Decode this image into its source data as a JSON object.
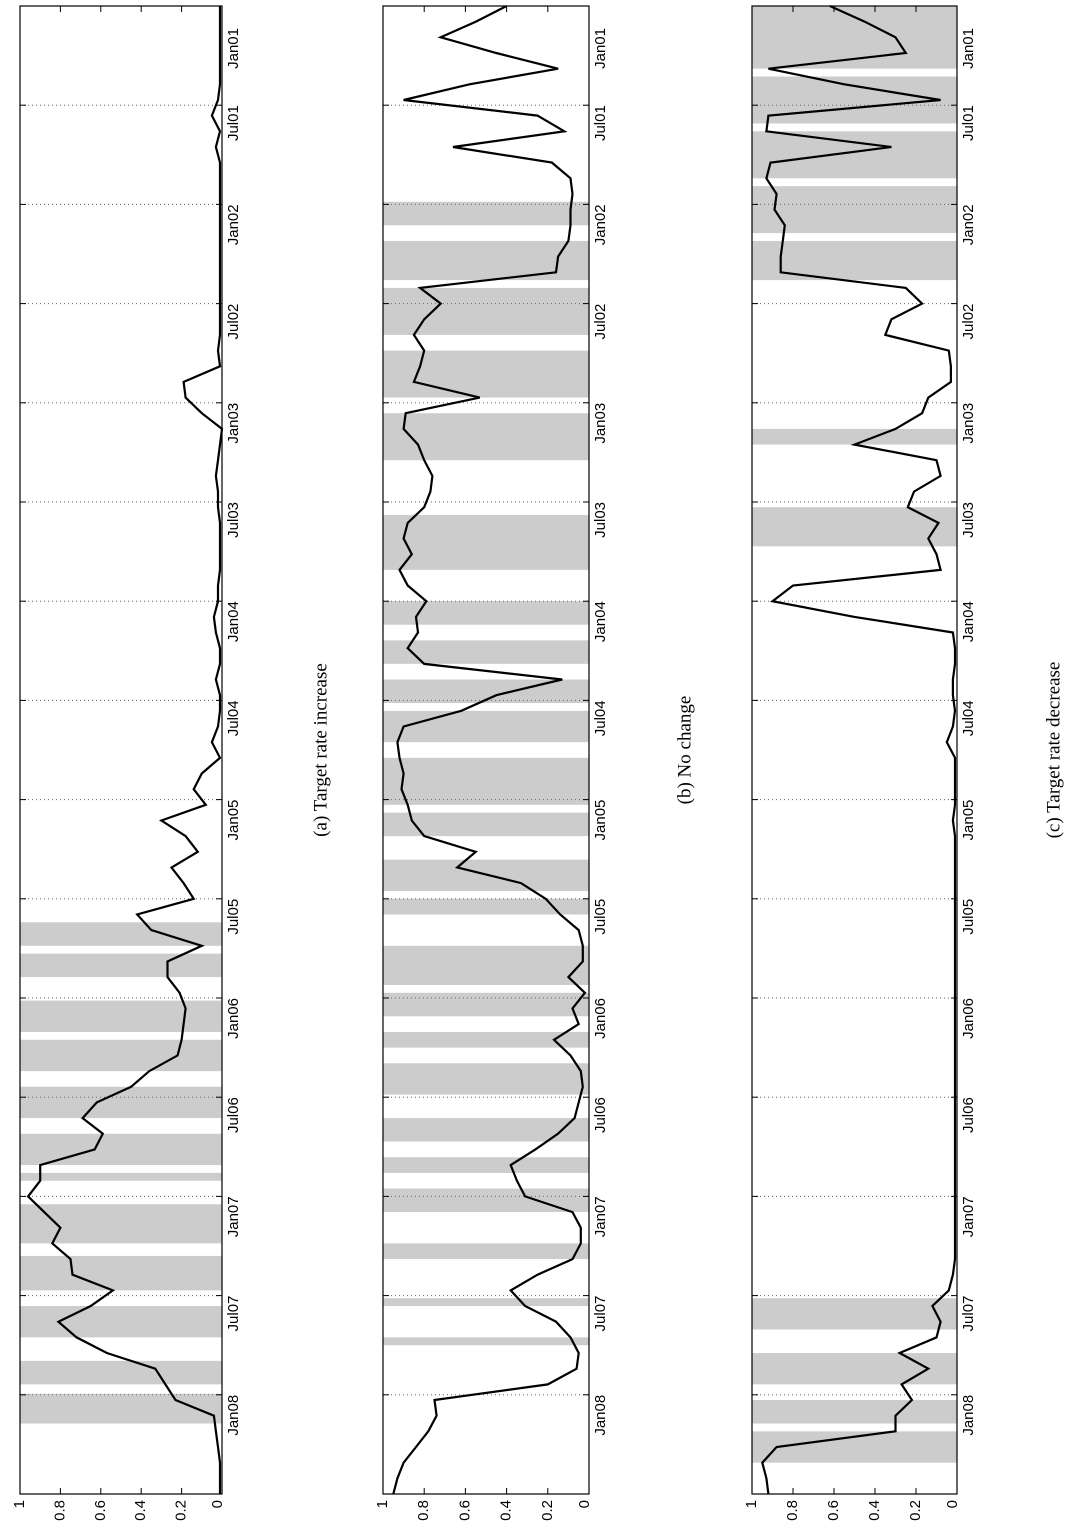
{
  "chart_data": [
    {
      "type": "line",
      "caption": "(a) Target rate increase",
      "ylim": [
        0,
        1
      ],
      "yticks": [
        "0",
        "0.2",
        "0.4",
        "0.6",
        "0.8",
        "1"
      ],
      "xlabels": [
        "Jan01",
        "Jul01",
        "Jan02",
        "Jul02",
        "Jan03",
        "Jul03",
        "Jan04",
        "Jul04",
        "Jan05",
        "Jul05",
        "Jan06",
        "Jul06",
        "Jan07",
        "Jul07",
        "Jan08"
      ],
      "xlim": [
        0,
        95
      ],
      "grid": "vertical-dotted",
      "shaded": [
        [
          58.5,
          60
        ],
        [
          60.5,
          62
        ],
        [
          63.5,
          65.5
        ],
        [
          66,
          68
        ],
        [
          69,
          71
        ],
        [
          72,
          74
        ],
        [
          74.5,
          75
        ],
        [
          76.5,
          79
        ],
        [
          79.8,
          82
        ],
        [
          83,
          85
        ],
        [
          86.5,
          88
        ],
        [
          88.6,
          90.5
        ]
      ],
      "x": [
        0,
        1,
        2,
        3,
        4,
        5,
        6,
        7,
        8,
        9,
        10,
        11,
        12,
        13,
        14,
        15,
        16,
        17,
        18,
        19,
        20,
        21,
        22,
        23,
        24,
        25,
        26,
        27,
        28,
        29,
        30,
        31,
        32,
        33,
        34,
        35,
        36,
        37,
        38,
        39,
        40,
        41,
        42,
        43,
        44,
        45,
        46,
        47,
        48,
        49,
        50,
        51,
        52,
        53,
        54,
        55,
        56,
        57,
        58,
        59,
        60,
        61,
        62,
        63,
        64,
        65,
        66,
        67,
        68,
        69,
        70,
        71,
        72,
        73,
        74,
        75,
        76,
        77,
        78,
        79,
        80,
        81,
        82,
        83,
        84,
        85,
        86,
        87,
        88,
        89,
        90,
        91,
        92,
        93,
        94,
        95
      ],
      "values": [
        0.01,
        0.01,
        0.01,
        0.01,
        0.01,
        0.01,
        0.02,
        0.05,
        0.01,
        0.03,
        0.01,
        0.01,
        0.01,
        0.01,
        0.01,
        0.01,
        0.01,
        0.01,
        0.01,
        0.01,
        0.01,
        0.01,
        0.02,
        0.01,
        0.19,
        0.18,
        0.1,
        0.0,
        0.01,
        0.02,
        0.03,
        0.02,
        0.02,
        0.01,
        0.01,
        0.01,
        0.01,
        0.02,
        0.02,
        0.04,
        0.03,
        0.01,
        0.01,
        0.03,
        0.01,
        0.01,
        0.02,
        0.05,
        0.01,
        0.1,
        0.14,
        0.08,
        0.3,
        0.18,
        0.12,
        0.25,
        0.19,
        0.14,
        0.42,
        0.35,
        0.1,
        0.27,
        0.27,
        0.21,
        0.18,
        0.19,
        0.2,
        0.22,
        0.36,
        0.45,
        0.62,
        0.69,
        0.59,
        0.63,
        0.9,
        0.9,
        0.96,
        0.88,
        0.8,
        0.84,
        0.75,
        0.74,
        0.54,
        0.65,
        0.81,
        0.72,
        0.57,
        0.33,
        0.28,
        0.23,
        0.04,
        0.03,
        0.02,
        0.01,
        0.01,
        0.01
      ]
    },
    {
      "type": "line",
      "caption": "(b) No change",
      "ylim": [
        0,
        1
      ],
      "yticks": [
        "0",
        "0.2",
        "0.4",
        "0.6",
        "0.8",
        "1"
      ],
      "xlabels": [
        "Jan01",
        "Jul01",
        "Jan02",
        "Jul02",
        "Jan03",
        "Jul03",
        "Jan04",
        "Jul04",
        "Jan05",
        "Jul05",
        "Jan06",
        "Jul06",
        "Jan07",
        "Jul07",
        "Jan08"
      ],
      "xlim": [
        0,
        95
      ],
      "grid": "vertical-dotted",
      "shaded": [
        [
          12.5,
          14
        ],
        [
          15,
          17.5
        ],
        [
          18,
          21
        ],
        [
          22,
          25
        ],
        [
          26,
          29
        ],
        [
          32.5,
          36
        ],
        [
          38,
          39.5
        ],
        [
          40.5,
          42
        ],
        [
          43,
          44.5
        ],
        [
          45,
          47
        ],
        [
          48,
          51
        ],
        [
          51.5,
          53
        ],
        [
          54.5,
          56.5
        ],
        [
          57,
          58
        ],
        [
          60,
          62.5
        ],
        [
          63,
          64.5
        ],
        [
          65.5,
          66.5
        ],
        [
          67.5,
          69.5
        ],
        [
          71,
          72.5
        ],
        [
          73.5,
          74.5
        ],
        [
          75.5,
          77
        ],
        [
          79,
          80
        ],
        [
          82.5,
          83
        ],
        [
          85,
          85.5
        ]
      ],
      "x": [
        0,
        1,
        2,
        3,
        4,
        5,
        6,
        7,
        8,
        9,
        10,
        11,
        12,
        13,
        14,
        15,
        16,
        17,
        18,
        19,
        20,
        21,
        22,
        23,
        24,
        25,
        26,
        27,
        28,
        29,
        30,
        31,
        32,
        33,
        34,
        35,
        36,
        37,
        38,
        39,
        40,
        41,
        42,
        43,
        44,
        45,
        46,
        47,
        48,
        49,
        50,
        51,
        52,
        53,
        54,
        55,
        56,
        57,
        58,
        59,
        60,
        61,
        62,
        63,
        64,
        65,
        66,
        67,
        68,
        69,
        70,
        71,
        72,
        73,
        74,
        75,
        76,
        77,
        78,
        79,
        80,
        81,
        82,
        83,
        84,
        85,
        86,
        87,
        88,
        89,
        90,
        91,
        92,
        93,
        94,
        95
      ],
      "values": [
        0.4,
        0.55,
        0.72,
        0.45,
        0.15,
        0.58,
        0.9,
        0.25,
        0.12,
        0.66,
        0.18,
        0.09,
        0.08,
        0.09,
        0.09,
        0.1,
        0.15,
        0.16,
        0.82,
        0.72,
        0.8,
        0.85,
        0.8,
        0.82,
        0.85,
        0.53,
        0.89,
        0.9,
        0.83,
        0.8,
        0.76,
        0.77,
        0.8,
        0.88,
        0.9,
        0.86,
        0.92,
        0.88,
        0.79,
        0.84,
        0.83,
        0.88,
        0.8,
        0.13,
        0.45,
        0.62,
        0.9,
        0.93,
        0.92,
        0.9,
        0.91,
        0.88,
        0.86,
        0.8,
        0.55,
        0.64,
        0.33,
        0.21,
        0.14,
        0.05,
        0.03,
        0.03,
        0.1,
        0.02,
        0.08,
        0.05,
        0.17,
        0.09,
        0.04,
        0.03,
        0.05,
        0.07,
        0.15,
        0.26,
        0.38,
        0.35,
        0.31,
        0.08,
        0.04,
        0.04,
        0.08,
        0.25,
        0.38,
        0.31,
        0.16,
        0.09,
        0.05,
        0.06,
        0.2,
        0.75,
        0.74,
        0.78,
        0.84,
        0.9,
        0.93,
        0.95
      ]
    },
    {
      "type": "line",
      "caption": "(c) Target rate decrease",
      "ylim": [
        0,
        1
      ],
      "yticks": [
        "0",
        "0.2",
        "0.4",
        "0.6",
        "0.8",
        "1"
      ],
      "xlabels": [
        "Jan01",
        "Jul01",
        "Jan02",
        "Jul02",
        "Jan03",
        "Jul03",
        "Jan04",
        "Jul04",
        "Jan05",
        "Jul05",
        "Jan06",
        "Jul06",
        "Jan07",
        "Jul07",
        "Jan08"
      ],
      "xlim": [
        0,
        95
      ],
      "grid": "vertical-dotted",
      "shaded": [
        [
          0,
          4
        ],
        [
          4.5,
          7.5
        ],
        [
          8,
          11
        ],
        [
          11.5,
          14.5
        ],
        [
          15,
          17.5
        ],
        [
          27,
          28
        ],
        [
          32,
          34.5
        ],
        [
          82.5,
          84.5
        ],
        [
          86,
          88
        ],
        [
          89,
          90.5
        ],
        [
          91,
          93
        ]
      ],
      "x": [
        0,
        1,
        2,
        3,
        4,
        5,
        6,
        7,
        8,
        9,
        10,
        11,
        12,
        13,
        14,
        15,
        16,
        17,
        18,
        19,
        20,
        21,
        22,
        23,
        24,
        25,
        26,
        27,
        28,
        29,
        30,
        31,
        32,
        33,
        34,
        35,
        36,
        37,
        38,
        39,
        40,
        41,
        42,
        43,
        44,
        45,
        46,
        47,
        48,
        49,
        50,
        51,
        52,
        53,
        54,
        55,
        56,
        57,
        58,
        59,
        60,
        61,
        62,
        63,
        64,
        65,
        66,
        67,
        68,
        69,
        70,
        71,
        72,
        73,
        74,
        75,
        76,
        77,
        78,
        79,
        80,
        81,
        82,
        83,
        84,
        85,
        86,
        87,
        88,
        89,
        90,
        91,
        92,
        93,
        94,
        95
      ],
      "values": [
        0.62,
        0.45,
        0.3,
        0.25,
        0.92,
        0.55,
        0.08,
        0.92,
        0.93,
        0.32,
        0.91,
        0.93,
        0.88,
        0.89,
        0.84,
        0.85,
        0.86,
        0.86,
        0.25,
        0.17,
        0.32,
        0.35,
        0.04,
        0.03,
        0.03,
        0.14,
        0.17,
        0.3,
        0.5,
        0.1,
        0.08,
        0.21,
        0.24,
        0.09,
        0.14,
        0.1,
        0.08,
        0.8,
        0.9,
        0.5,
        0.02,
        0.01,
        0.01,
        0.02,
        0.02,
        0.01,
        0.02,
        0.05,
        0.01,
        0.01,
        0.01,
        0.01,
        0.02,
        0.01,
        0.01,
        0.01,
        0.01,
        0.01,
        0.01,
        0.01,
        0.01,
        0.01,
        0.01,
        0.01,
        0.01,
        0.01,
        0.01,
        0.01,
        0.01,
        0.01,
        0.01,
        0.01,
        0.01,
        0.01,
        0.01,
        0.01,
        0.01,
        0.01,
        0.01,
        0.01,
        0.01,
        0.02,
        0.04,
        0.12,
        0.08,
        0.1,
        0.28,
        0.14,
        0.27,
        0.22,
        0.3,
        0.3,
        0.88,
        0.95,
        0.93,
        0.92
      ]
    }
  ]
}
